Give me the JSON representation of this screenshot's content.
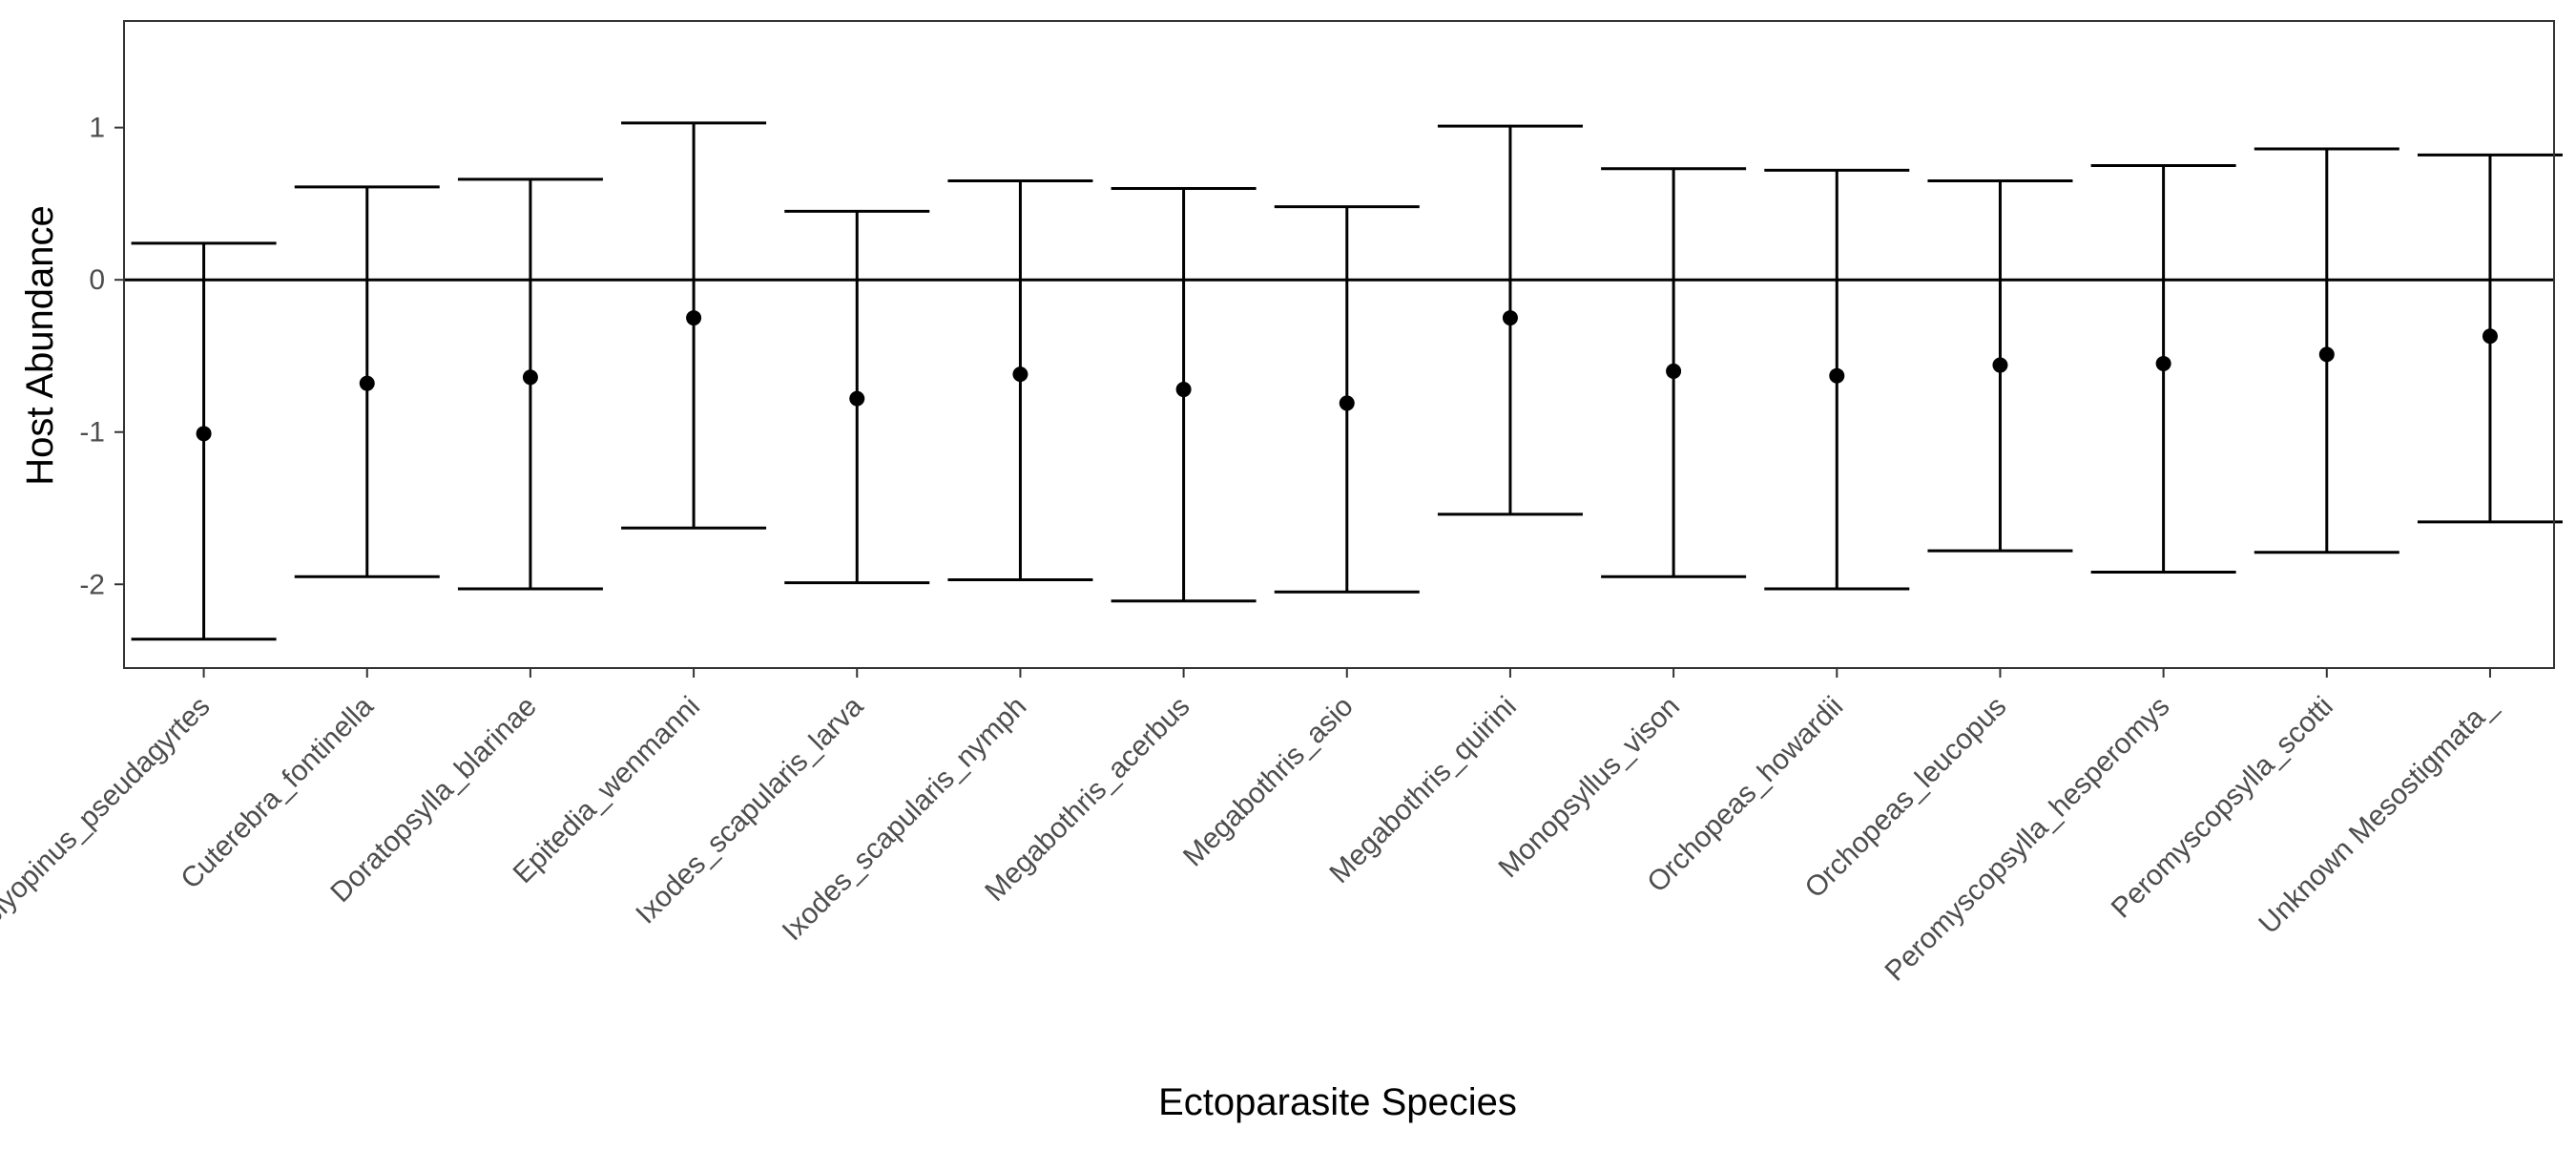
{
  "chart_data": {
    "type": "errorbar",
    "xlabel": "Ectoparasite Species",
    "ylabel": "Host Abundance",
    "ylim": [
      -2.55,
      1.7
    ],
    "yticks": [
      1,
      0,
      -1,
      -2
    ],
    "ytick_labels": [
      "1",
      "0",
      "-1",
      "-2"
    ],
    "reference_line": 0,
    "grid": false,
    "legend": "none",
    "categories": [
      "Amblyopinus_pseudagyrtes",
      "Cuterebra_fontinella",
      "Doratopsylla_blarinae",
      "Epitedia_wenmanni",
      "Ixodes_scapularis_larva",
      "Ixodes_scapularis_nymph",
      "Megabothris_acerbus",
      "Megabothris_asio",
      "Megabothris_quirini",
      "Monopsyllus_vison",
      "Orchopeas_howardii",
      "Orchopeas_leucopus",
      "Peromyscopsylla_hesperomys",
      "Peromyscopsylla_scotti",
      "Unknown Mesostigmata_"
    ],
    "estimates": [
      -1.01,
      -0.68,
      -0.64,
      -0.25,
      -0.78,
      -0.62,
      -0.72,
      -0.81,
      -0.25,
      -0.6,
      -0.63,
      -0.56,
      -0.55,
      -0.49,
      -0.37
    ],
    "lower": [
      -2.36,
      -1.95,
      -2.03,
      -1.63,
      -1.99,
      -1.97,
      -2.11,
      -2.05,
      -1.54,
      -1.95,
      -2.03,
      -1.78,
      -1.92,
      -1.79,
      -1.59
    ],
    "upper": [
      0.24,
      0.61,
      0.66,
      1.03,
      0.45,
      0.65,
      0.6,
      0.48,
      1.01,
      0.73,
      0.72,
      0.65,
      0.75,
      0.86,
      0.82
    ],
    "colors": {
      "marks": "#000000",
      "panel_border": "#333333",
      "tick_text": "#4d4d4d",
      "background": "#ffffff"
    }
  }
}
